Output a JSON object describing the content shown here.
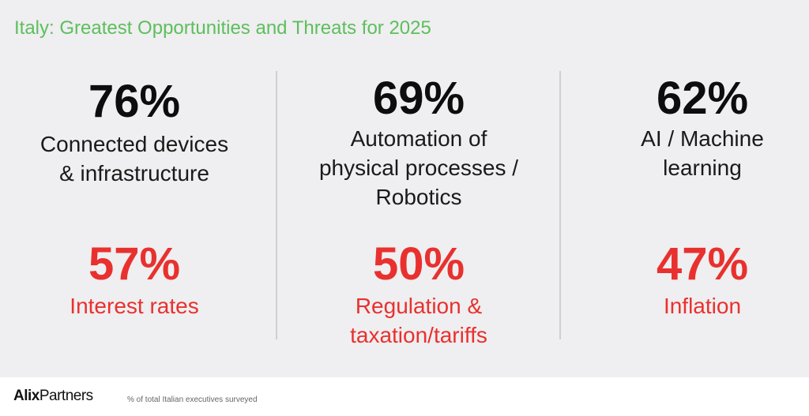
{
  "chart_data": {
    "type": "table",
    "title": "Italy: Greatest Opportunities and Threats for 2025",
    "footnote": "% of total Italian executives surveyed",
    "opportunities": [
      {
        "value": "76%",
        "label": "Connected devices\n& infrastructure"
      },
      {
        "value": "69%",
        "label": "Automation of\nphysical processes /\nRobotics"
      },
      {
        "value": "62%",
        "label": "AI / Machine\nlearning"
      }
    ],
    "threats": [
      {
        "value": "57%",
        "label": "Interest rates"
      },
      {
        "value": "50%",
        "label": "Regulation &\ntaxation/tariffs"
      },
      {
        "value": "47%",
        "label": "Inflation"
      }
    ],
    "colors": {
      "title": "#5cbf5c",
      "opportunity": "#0d0d0d",
      "threat": "#e8312e",
      "background": "#efeef0"
    }
  },
  "brand": {
    "logo_bold": "Alix",
    "logo_regular": "Partners"
  }
}
